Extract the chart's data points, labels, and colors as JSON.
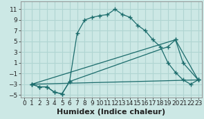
{
  "xlabel": "Humidex (Indice chaleur)",
  "bg_color": "#cce8e5",
  "grid_color": "#b0d5d2",
  "line_color": "#1a6b6b",
  "xlim": [
    -0.5,
    23.5
  ],
  "ylim": [
    -5.5,
    12.5
  ],
  "xticks": [
    0,
    1,
    2,
    3,
    4,
    5,
    6,
    7,
    8,
    9,
    10,
    11,
    12,
    13,
    14,
    15,
    16,
    17,
    18,
    19,
    20,
    21,
    22,
    23
  ],
  "yticks": [
    -5,
    -3,
    -1,
    1,
    3,
    5,
    7,
    9,
    11
  ],
  "curve1_x": [
    1,
    2,
    3,
    4,
    5,
    6,
    7,
    8,
    9,
    10,
    11,
    12,
    13,
    14,
    15,
    16,
    17,
    18,
    19,
    20,
    21,
    22,
    23
  ],
  "curve1_y": [
    -3,
    -3.5,
    -3.5,
    -4.5,
    -4.8,
    -2.5,
    6.5,
    9.0,
    9.5,
    9.8,
    10.0,
    11.0,
    10.0,
    9.5,
    8.0,
    7.0,
    5.3,
    4.0,
    1.0,
    -0.8,
    -2.2,
    -3.0,
    -2.2
  ],
  "curve2_x": [
    1,
    2,
    3,
    4,
    5,
    6,
    19,
    20,
    23
  ],
  "curve2_y": [
    -3,
    -3.5,
    -3.5,
    -4.5,
    -4.8,
    -2.5,
    4.0,
    5.3,
    -2.2
  ],
  "curve3_x": [
    1,
    23
  ],
  "curve3_y": [
    -3,
    -2.2
  ],
  "curve4_x": [
    1,
    20,
    21,
    23
  ],
  "curve4_y": [
    -3,
    5.3,
    1.0,
    -2.2
  ],
  "tick_fontsize": 6.5,
  "xlabel_fontsize": 8
}
